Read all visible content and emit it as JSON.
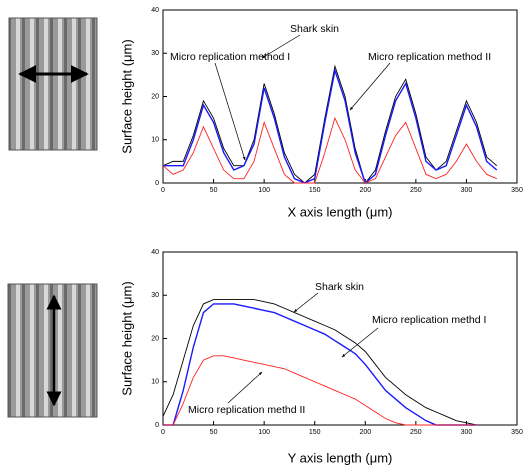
{
  "chart_data": [
    {
      "type": "line",
      "xlabel": "X axis length (μm)",
      "ylabel": "Surface height (μm)",
      "xlim": [
        0,
        350
      ],
      "ylim": [
        0,
        40
      ],
      "xticks": [
        0,
        50,
        100,
        150,
        200,
        250,
        300,
        350
      ],
      "yticks": [
        0,
        10,
        20,
        30,
        40
      ],
      "x": [
        0,
        10,
        20,
        30,
        40,
        50,
        60,
        70,
        80,
        90,
        100,
        110,
        120,
        130,
        140,
        150,
        160,
        170,
        180,
        190,
        200,
        210,
        220,
        230,
        240,
        250,
        260,
        270,
        280,
        290,
        300,
        310,
        320,
        330
      ],
      "series": [
        {
          "name": "Shark skin",
          "color": "#000000",
          "values": [
            4,
            5,
            5,
            11,
            19,
            15,
            8,
            4,
            4,
            10,
            23,
            16,
            7,
            2,
            0,
            2,
            15,
            27,
            20,
            8,
            0,
            3,
            12,
            20,
            24,
            16,
            6,
            3,
            5,
            12,
            19,
            14,
            6,
            4
          ]
        },
        {
          "name": "Micro replication method I",
          "color": "#1a1aff",
          "values": [
            4,
            4,
            4,
            10,
            18,
            14,
            7,
            3,
            4,
            9,
            22,
            15,
            6,
            1,
            0,
            1,
            14,
            26,
            19,
            7,
            0,
            2,
            11,
            19,
            23,
            15,
            5,
            3,
            4,
            11,
            18,
            13,
            5,
            3
          ]
        },
        {
          "name": "Micro replication method II",
          "color": "#ff2020",
          "values": [
            4,
            2,
            3,
            7,
            13,
            8,
            3,
            1,
            1,
            5,
            14,
            8,
            2,
            0,
            0,
            0,
            7,
            15,
            10,
            3,
            0,
            1,
            6,
            11,
            14,
            8,
            2,
            1,
            2,
            5,
            9,
            5,
            2,
            1
          ]
        }
      ]
    },
    {
      "type": "line",
      "xlabel": "Y axis length (μm)",
      "ylabel": "Surface height (μm)",
      "xlim": [
        0,
        350
      ],
      "ylim": [
        0,
        40
      ],
      "xticks": [
        0,
        50,
        100,
        150,
        200,
        250,
        300,
        350
      ],
      "yticks": [
        0,
        10,
        20,
        30,
        40
      ],
      "x": [
        0,
        10,
        20,
        30,
        40,
        50,
        60,
        70,
        80,
        90,
        100,
        110,
        120,
        130,
        140,
        150,
        160,
        170,
        180,
        190,
        200,
        210,
        220,
        230,
        240,
        250,
        260,
        270,
        280,
        290,
        300,
        310
      ],
      "series": [
        {
          "name": "Shark skin",
          "color": "#000000",
          "values": [
            2,
            7,
            15,
            23,
            28,
            29,
            29,
            29,
            29,
            29,
            28.5,
            28,
            27,
            26,
            25,
            24,
            23,
            22,
            20.5,
            19,
            17,
            14,
            11,
            9,
            7,
            5.5,
            4,
            3,
            2,
            1,
            0.5,
            0
          ]
        },
        {
          "name": "Micro replication methd I",
          "color": "#1a1aff",
          "values": [
            0,
            0,
            8,
            18,
            26,
            28,
            28,
            28,
            27.5,
            27,
            26.5,
            26,
            25,
            24,
            23,
            22,
            21,
            19.5,
            18,
            16.5,
            14,
            11,
            8,
            6,
            4,
            2.5,
            1,
            0,
            0,
            0,
            0,
            0
          ]
        },
        {
          "name": "Micro replication methd II",
          "color": "#ff2020",
          "values": [
            0,
            0,
            5,
            11,
            15,
            16,
            16,
            15.5,
            15,
            14.5,
            14,
            13.5,
            13,
            12,
            11,
            10,
            9,
            8,
            7,
            6,
            4.5,
            3,
            1.5,
            0.5,
            0,
            0,
            0,
            0,
            0,
            0,
            0,
            0
          ]
        }
      ]
    }
  ]
}
